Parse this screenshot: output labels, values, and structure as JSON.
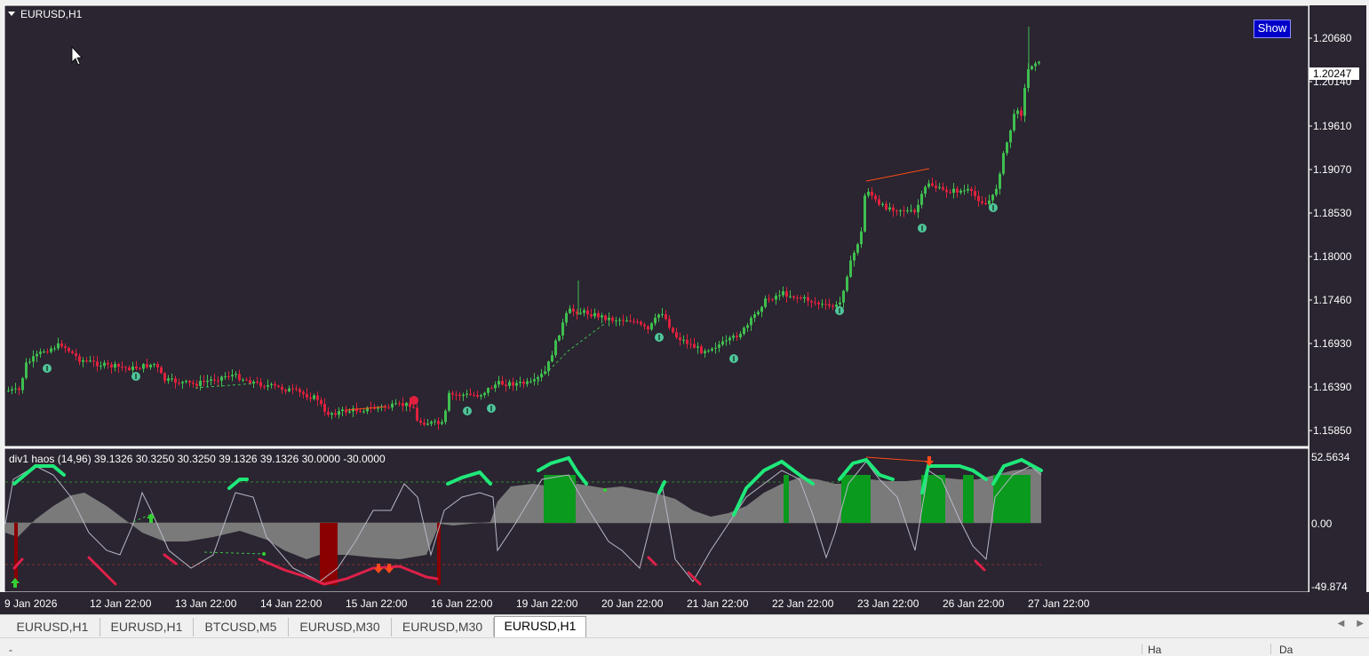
{
  "chart_window": {
    "symbol_title": "EURUSD,H1",
    "show_button": "Show",
    "current_price": "1.20247",
    "price_axis": [
      "1.20680",
      "1.20140",
      "1.19610",
      "1.19070",
      "1.18530",
      "1.18000",
      "1.17460",
      "1.16930",
      "1.16390",
      "1.15850"
    ],
    "time_axis": [
      "9 Jan 2026",
      "12 Jan 22:00",
      "13 Jan 22:00",
      "14 Jan 22:00",
      "15 Jan 22:00",
      "16 Jan 22:00",
      "19 Jan 22:00",
      "20 Jan 22:00",
      "21 Jan 22:00",
      "22 Jan 22:00",
      "23 Jan 22:00",
      "26 Jan 22:00",
      "27 Jan 22:00"
    ]
  },
  "indicator": {
    "label": "div1 haos  (14,96) 39.1326 30.3250 30.3250 39.1326 39.1326 30.0000 -30.0000",
    "axis": [
      "52.5634",
      "0.00",
      "-49.874"
    ]
  },
  "colors": {
    "background": "#2a2530",
    "bull": "#3fbf4f",
    "bear": "#e0203e",
    "histogram": "#7a7a7a",
    "zone_green": "#0a9a1e",
    "zone_red": "#8a0000",
    "curve_up": "#1fe87a",
    "curve_down": "#e0204a",
    "divergence": "#ff4a1a"
  },
  "tabs": [
    {
      "label": "EURUSD,H1",
      "active": false
    },
    {
      "label": "EURUSD,H1",
      "active": false
    },
    {
      "label": "BTCUSD,M5",
      "active": false
    },
    {
      "label": "EURUSD,M30",
      "active": false
    },
    {
      "label": "EURUSD,M30",
      "active": false
    },
    {
      "label": "EURUSD,H1",
      "active": true
    }
  ],
  "status": {
    "left": "-",
    "mid": "Ha",
    "right": "Da"
  }
}
